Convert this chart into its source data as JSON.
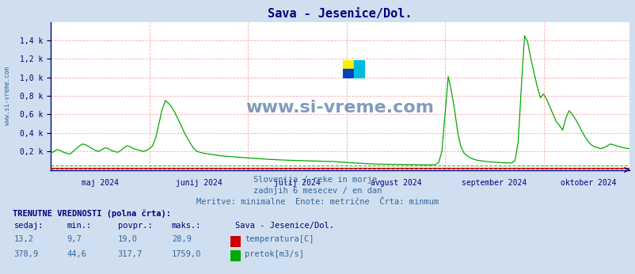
{
  "title": "Sava - Jesenice/Dol.",
  "title_color": "#000080",
  "bg_color": "#d0dff0",
  "plot_bg_color": "#ffffff",
  "grid_color_major": "#ffaaaa",
  "y_min": 0,
  "y_max": 1600,
  "y_ticks": [
    200,
    400,
    600,
    800,
    1000,
    1200,
    1400
  ],
  "y_tick_labels": [
    "0,2 k",
    "0,4 k",
    "0,6 k",
    "0,8 k",
    "1,0 k",
    "1,2 k",
    "1,4 k"
  ],
  "x_labels": [
    "maj 2024",
    "junij 2024",
    "julij 2024",
    "avgust 2024",
    "september 2024",
    "oktober 2024"
  ],
  "watermark": "www.si-vreme.com",
  "watermark_color": "#1a4a8a",
  "subtitle1": "Slovenija / reke in morje.",
  "subtitle2": "zadnjih 6 mesecev / en dan",
  "subtitle3": "Meritve: minimalne  Enote: metrične  Črta: minmum",
  "subtitle_color": "#336699",
  "temp_color": "#cc0000",
  "flow_color": "#00aa00",
  "axis_color": "#000080",
  "spine_color": "#000080",
  "info_title_color": "#000080",
  "info_color": "#336699",
  "legend_temp_color": "#cc0000",
  "legend_flow_color": "#00aa00",
  "logo_yellow": "#ffee00",
  "logo_blue": "#0044bb",
  "logo_cyan": "#00bbdd",
  "n_points": 183
}
